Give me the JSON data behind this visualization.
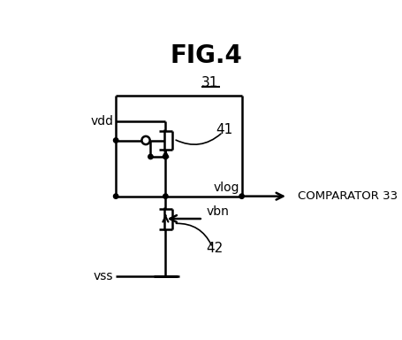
{
  "title": "FIG.4",
  "background_color": "#ffffff",
  "line_color": "#000000",
  "label_31": "31",
  "label_41": "41",
  "label_42": "42",
  "label_vdd": "vdd",
  "label_vss": "vss",
  "label_vlog": "vlog",
  "label_vbn": "vbn",
  "label_comparator": "COMPARATOR 33",
  "figsize": [
    4.55,
    3.84
  ],
  "dpi": 100
}
